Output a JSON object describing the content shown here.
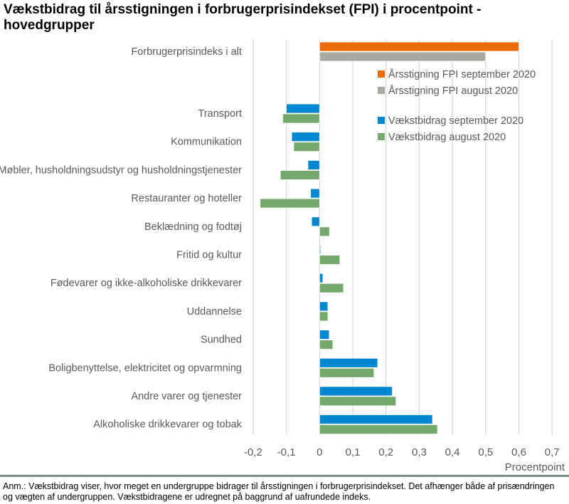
{
  "chart_data": {
    "type": "bar",
    "orientation": "horizontal",
    "title": "Vækstbidrag til årsstigningen i forbrugerprisindekset (FPI) i procentpoint - hovedgrupper",
    "xlabel": "Procentpoint",
    "xlim": [
      -0.2,
      0.7
    ],
    "xticks": [
      "-0,2",
      "-0,1",
      "0",
      "0,1",
      "0,2",
      "0,3",
      "0,4",
      "0,5",
      "0,6",
      "0,7"
    ],
    "xtick_values": [
      -0.2,
      -0.1,
      0,
      0.1,
      0.2,
      0.3,
      0.4,
      0.5,
      0.6,
      0.7
    ],
    "grid": "vertical",
    "legend_position": "right",
    "total": {
      "category": "Forbrugerprisindeks i alt",
      "series": [
        {
          "name": "Årsstigning FPI september 2020",
          "color": "#ed6b06",
          "value": 0.6
        },
        {
          "name": "Årsstigning FPI august 2020",
          "color": "#a9a9a0",
          "value": 0.5
        }
      ]
    },
    "categories": [
      "Transport",
      "Kommunikation",
      "Møbler, husholdningsudstyr og husholdningstjenester",
      "Restauranter og hoteller",
      "Beklædning og fodtøj",
      "Fritid og kultur",
      "Fødevarer og ikke-alkoholiske drikkevarer",
      "Uddannelse",
      "Sundhed",
      "Boligbenyttelse, elektricitet og opvarmning",
      "Andre varer og tjenester",
      "Alkoholiske drikkevarer og tobak"
    ],
    "series": [
      {
        "name": "Vækstbidrag september 2020",
        "color": "#0089d2",
        "values": [
          -0.1,
          -0.084,
          -0.035,
          -0.027,
          -0.024,
          0.003,
          0.01,
          0.025,
          0.029,
          0.175,
          0.219,
          0.34
        ]
      },
      {
        "name": "Vækstbidrag august 2020",
        "color": "#74a96c",
        "values": [
          -0.111,
          -0.078,
          -0.118,
          -0.179,
          0.03,
          0.061,
          0.072,
          0.025,
          0.04,
          0.164,
          0.23,
          0.355
        ]
      }
    ]
  },
  "note": "Anm.: Vækstbidrag viser, hvor meget en undergruppe bidrager til årsstigningen i forbrugerprisindekset. Det afhænger både af prisændringen og vægten af undergruppen. Vækstbidragene er udregnet på baggrund af uafrundede indeks."
}
